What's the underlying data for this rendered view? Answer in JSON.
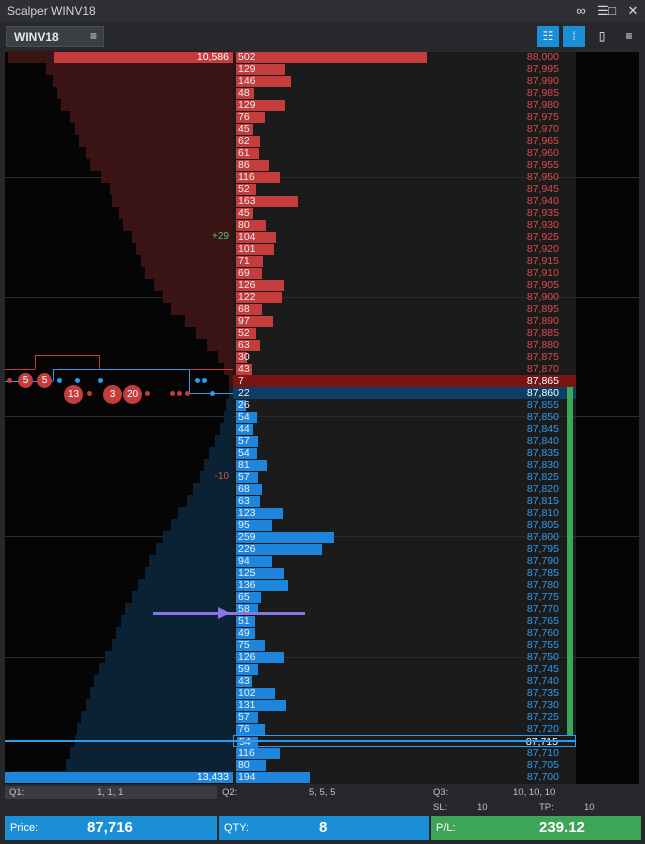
{
  "window": {
    "title": "Scalper WINV18",
    "title_icons": [
      "link-icon",
      "settings-list-icon",
      "maximize-icon",
      "close-icon"
    ]
  },
  "toolbar": {
    "symbol": "WINV18",
    "buttons": [
      "ladder-view-icon",
      "hierarchy-icon",
      "mouse-icon",
      "menu-icon"
    ]
  },
  "ladder": {
    "rows": [
      {
        "price": "88,000",
        "qty": "502",
        "side": "ask",
        "profile": 180,
        "vol_label": "10,586"
      },
      {
        "price": "87,995",
        "qty": "129",
        "side": "ask",
        "profile": 85
      },
      {
        "price": "87,990",
        "qty": "146",
        "side": "ask",
        "profile": 82
      },
      {
        "price": "87,985",
        "qty": "48",
        "side": "ask",
        "profile": 80
      },
      {
        "price": "87,980",
        "qty": "129",
        "side": "ask",
        "profile": 78
      },
      {
        "price": "87,975",
        "qty": "76",
        "side": "ask",
        "profile": 74
      },
      {
        "price": "87,970",
        "qty": "45",
        "side": "ask",
        "profile": 72
      },
      {
        "price": "87,965",
        "qty": "62",
        "side": "ask",
        "profile": 70
      },
      {
        "price": "87,960",
        "qty": "61",
        "side": "ask",
        "profile": 67
      },
      {
        "price": "87,955",
        "qty": "86",
        "side": "ask",
        "profile": 65
      },
      {
        "price": "87,950",
        "qty": "116",
        "side": "ask",
        "profile": 60
      },
      {
        "price": "87,945",
        "qty": "52",
        "side": "ask",
        "profile": 56
      },
      {
        "price": "87,940",
        "qty": "163",
        "side": "ask",
        "profile": 55
      },
      {
        "price": "87,935",
        "qty": "45",
        "side": "ask",
        "profile": 52
      },
      {
        "price": "87,930",
        "qty": "80",
        "side": "ask",
        "profile": 50
      },
      {
        "price": "87,925",
        "qty": "104",
        "side": "ask",
        "profile": 46,
        "delta": "+29"
      },
      {
        "price": "87,920",
        "qty": "101",
        "side": "ask",
        "profile": 44
      },
      {
        "price": "87,915",
        "qty": "71",
        "side": "ask",
        "profile": 42
      },
      {
        "price": "87,910",
        "qty": "69",
        "side": "ask",
        "profile": 40
      },
      {
        "price": "87,905",
        "qty": "126",
        "side": "ask",
        "profile": 36
      },
      {
        "price": "87,900",
        "qty": "122",
        "side": "ask",
        "profile": 32
      },
      {
        "price": "87,895",
        "qty": "68",
        "side": "ask",
        "profile": 28
      },
      {
        "price": "87,890",
        "qty": "97",
        "side": "ask",
        "profile": 22
      },
      {
        "price": "87,885",
        "qty": "52",
        "side": "ask",
        "profile": 17
      },
      {
        "price": "87,880",
        "qty": "63",
        "side": "ask",
        "profile": 12
      },
      {
        "price": "87,875",
        "qty": "30",
        "side": "ask",
        "profile": 7
      },
      {
        "price": "87,870",
        "qty": "43",
        "side": "ask",
        "profile": 4
      },
      {
        "price": "87,865",
        "qty": "7",
        "side": "ask",
        "profile": 2,
        "highlight": "ask"
      },
      {
        "price": "87,860",
        "qty": "22",
        "side": "bid",
        "profile": 2,
        "highlight": "bid"
      },
      {
        "price": "87,855",
        "qty": "26",
        "side": "bid",
        "profile": 3
      },
      {
        "price": "87,850",
        "qty": "54",
        "side": "bid",
        "profile": 4
      },
      {
        "price": "87,845",
        "qty": "44",
        "side": "bid",
        "profile": 6
      },
      {
        "price": "87,840",
        "qty": "57",
        "side": "bid",
        "profile": 8
      },
      {
        "price": "87,835",
        "qty": "54",
        "side": "bid",
        "profile": 11
      },
      {
        "price": "87,830",
        "qty": "81",
        "side": "bid",
        "profile": 13
      },
      {
        "price": "87,825",
        "qty": "57",
        "side": "bid",
        "profile": 15,
        "delta": "-10"
      },
      {
        "price": "87,820",
        "qty": "68",
        "side": "bid",
        "profile": 18
      },
      {
        "price": "87,815",
        "qty": "63",
        "side": "bid",
        "profile": 21
      },
      {
        "price": "87,810",
        "qty": "123",
        "side": "bid",
        "profile": 25
      },
      {
        "price": "87,805",
        "qty": "95",
        "side": "bid",
        "profile": 28
      },
      {
        "price": "87,800",
        "qty": "259",
        "side": "bid",
        "profile": 32
      },
      {
        "price": "87,795",
        "qty": "226",
        "side": "bid",
        "profile": 35
      },
      {
        "price": "87,790",
        "qty": "94",
        "side": "bid",
        "profile": 38
      },
      {
        "price": "87,785",
        "qty": "125",
        "side": "bid",
        "profile": 40
      },
      {
        "price": "87,780",
        "qty": "136",
        "side": "bid",
        "profile": 43
      },
      {
        "price": "87,775",
        "qty": "65",
        "side": "bid",
        "profile": 46
      },
      {
        "price": "87,770",
        "qty": "58",
        "side": "bid",
        "profile": 49
      },
      {
        "price": "87,765",
        "qty": "51",
        "side": "bid",
        "profile": 51
      },
      {
        "price": "87,760",
        "qty": "49",
        "side": "bid",
        "profile": 53
      },
      {
        "price": "87,755",
        "qty": "75",
        "side": "bid",
        "profile": 55
      },
      {
        "price": "87,750",
        "qty": "126",
        "side": "bid",
        "profile": 58
      },
      {
        "price": "87,745",
        "qty": "59",
        "side": "bid",
        "profile": 61
      },
      {
        "price": "87,740",
        "qty": "43",
        "side": "bid",
        "profile": 63
      },
      {
        "price": "87,735",
        "qty": "102",
        "side": "bid",
        "profile": 65
      },
      {
        "price": "87,730",
        "qty": "131",
        "side": "bid",
        "profile": 67
      },
      {
        "price": "87,725",
        "qty": "57",
        "side": "bid",
        "profile": 69
      },
      {
        "price": "87,720",
        "qty": "76",
        "side": "bid",
        "profile": 71
      },
      {
        "price": "87,715",
        "qty": "54",
        "side": "bid",
        "profile": 72,
        "highlight": "position"
      },
      {
        "price": "87,710",
        "qty": "116",
        "side": "bid",
        "profile": 74
      },
      {
        "price": "87,705",
        "qty": "80",
        "side": "bid",
        "profile": 76
      },
      {
        "price": "87,700",
        "qty": "194",
        "side": "bid",
        "profile": 100,
        "vol_label": "13,433"
      }
    ],
    "order_markers": [
      {
        "label": "5",
        "row": 27,
        "kind": "ask-order"
      },
      {
        "label": "5",
        "row": 27,
        "kind": "ask-order"
      },
      {
        "label": "13",
        "row": 28,
        "kind": "ask-order"
      },
      {
        "label": "3",
        "row": 28,
        "kind": "ask-order"
      },
      {
        "label": "20",
        "row": 28,
        "kind": "ask-order"
      }
    ]
  },
  "stats": {
    "q1_label": "Q1:",
    "q1_value": "1, 1, 1",
    "q2_label": "Q2:",
    "q2_value": "5, 5, 5",
    "q3_label": "Q3:",
    "q3_value": "10, 10, 10",
    "sl_label": "SL:",
    "sl_value": "10",
    "tp_label": "TP:",
    "tp_value": "10"
  },
  "footer": {
    "price_label": "Price:",
    "price_value": "87,716",
    "qty_label": "QTY:",
    "qty_value": "8",
    "pl_label": "P/L:",
    "pl_value": "239.12"
  },
  "colors": {
    "ask": "#c43c3c",
    "bid": "#1d86dc",
    "profit": "#3da557",
    "accent": "#1a8fd6"
  }
}
